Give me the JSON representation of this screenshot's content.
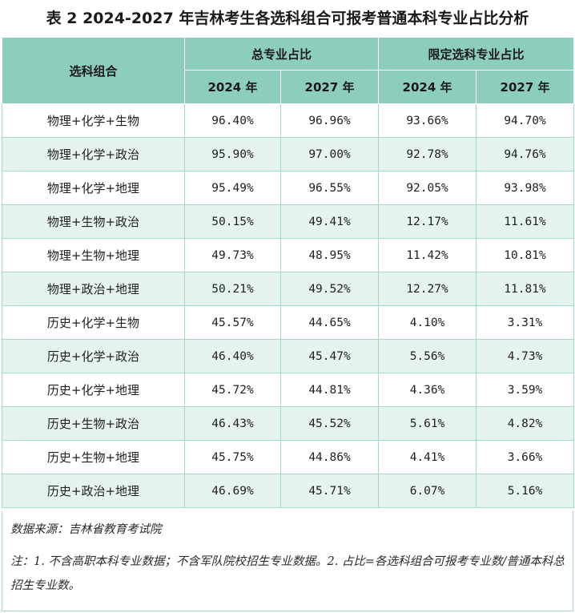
{
  "title": "表 2 2024-2027 年吉林考生各选科组合可报考普通本科专业占比分析",
  "header": {
    "combo_label": "选科组合",
    "group1_label": "总专业占比",
    "group2_label": "限定选科专业占比",
    "year1": "2024 年",
    "year2": "2027 年"
  },
  "rows": [
    {
      "combo": "物理+化学+生物",
      "total_2024": "96.40%",
      "total_2027": "96.96%",
      "limited_2024": "93.66%",
      "limited_2027": "94.70%"
    },
    {
      "combo": "物理+化学+政治",
      "total_2024": "95.90%",
      "total_2027": "97.00%",
      "limited_2024": "92.78%",
      "limited_2027": "94.76%"
    },
    {
      "combo": "物理+化学+地理",
      "total_2024": "95.49%",
      "total_2027": "96.55%",
      "limited_2024": "92.05%",
      "limited_2027": "93.98%"
    },
    {
      "combo": "物理+生物+政治",
      "total_2024": "50.15%",
      "total_2027": "49.41%",
      "limited_2024": "12.17%",
      "limited_2027": "11.61%"
    },
    {
      "combo": "物理+生物+地理",
      "total_2024": "49.73%",
      "total_2027": "48.95%",
      "limited_2024": "11.42%",
      "limited_2027": "10.81%"
    },
    {
      "combo": "物理+政治+地理",
      "total_2024": "50.21%",
      "total_2027": "49.52%",
      "limited_2024": "12.27%",
      "limited_2027": "11.81%"
    },
    {
      "combo": "历史+化学+生物",
      "total_2024": "45.57%",
      "total_2027": "44.65%",
      "limited_2024": "4.10%",
      "limited_2027": "3.31%"
    },
    {
      "combo": "历史+化学+政治",
      "total_2024": "46.40%",
      "total_2027": "45.47%",
      "limited_2024": "5.56%",
      "limited_2027": "4.73%"
    },
    {
      "combo": "历史+化学+地理",
      "total_2024": "45.72%",
      "total_2027": "44.81%",
      "limited_2024": "4.36%",
      "limited_2027": "3.59%"
    },
    {
      "combo": "历史+生物+政治",
      "total_2024": "46.43%",
      "total_2027": "45.52%",
      "limited_2024": "5.61%",
      "limited_2027": "4.82%"
    },
    {
      "combo": "历史+生物+地理",
      "total_2024": "45.75%",
      "total_2027": "44.86%",
      "limited_2024": "4.41%",
      "limited_2027": "3.66%"
    },
    {
      "combo": "历史+政治+地理",
      "total_2024": "46.69%",
      "total_2027": "45.71%",
      "limited_2024": "6.07%",
      "limited_2027": "5.16%"
    }
  ],
  "notes": {
    "source": "数据来源：吉林省教育考试院",
    "note": "注：1. 不含高职本科专业数据；不含军队院校招生专业数据。2. 占比=各选科组合可报考专业数/普通本科总招生专业数。"
  },
  "colors": {
    "header_bg": "#8dcdbd",
    "stripe_bg": "#e6f4ef",
    "border": "#a6d9cd"
  }
}
